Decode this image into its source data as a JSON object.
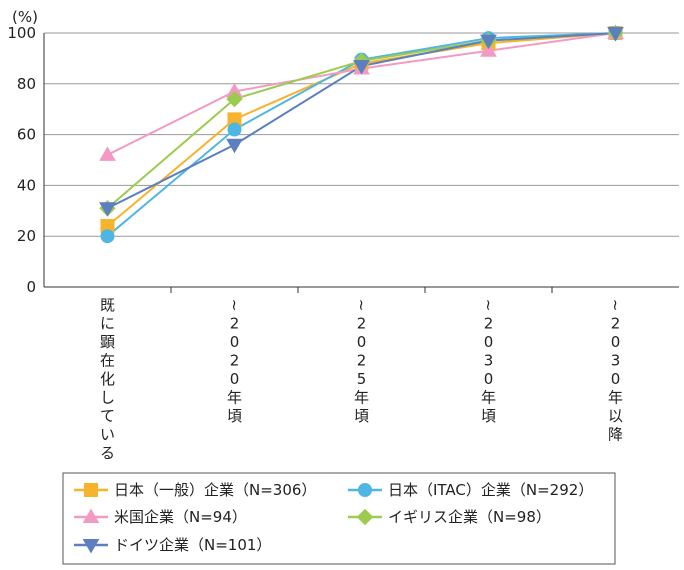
{
  "chart_data": {
    "type": "line",
    "ylabel": "(%)",
    "ylim": [
      0,
      100
    ],
    "yticks": [
      0,
      20,
      40,
      60,
      80,
      100
    ],
    "grid": true,
    "legend_position": "bottom",
    "categories": [
      "既に顕在化している",
      "~2020年頃",
      "~2025年頃",
      "~2030年頃",
      "~2030年以降"
    ],
    "series": [
      {
        "name": "日本（一般）企業（N=306）",
        "marker": "square",
        "color": "#F7B32B",
        "values": [
          24,
          66,
          88,
          96,
          100
        ]
      },
      {
        "name": "日本（ITAC）企業（N=292）",
        "marker": "circle",
        "color": "#4DB6E3",
        "values": [
          20,
          62,
          89.5,
          98,
          100
        ]
      },
      {
        "name": "米国企業（N=94）",
        "marker": "triangle-up",
        "color": "#F29AC4",
        "values": [
          52,
          77,
          86,
          93,
          100
        ]
      },
      {
        "name": "イギリス企業（N=98）",
        "marker": "diamond",
        "color": "#9CCB4E",
        "values": [
          31,
          74,
          89,
          97,
          100
        ]
      },
      {
        "name": "ドイツ企業（N=101）",
        "marker": "triangle-down",
        "color": "#5B7FBF",
        "values": [
          31,
          56,
          87,
          97,
          100
        ]
      }
    ]
  }
}
